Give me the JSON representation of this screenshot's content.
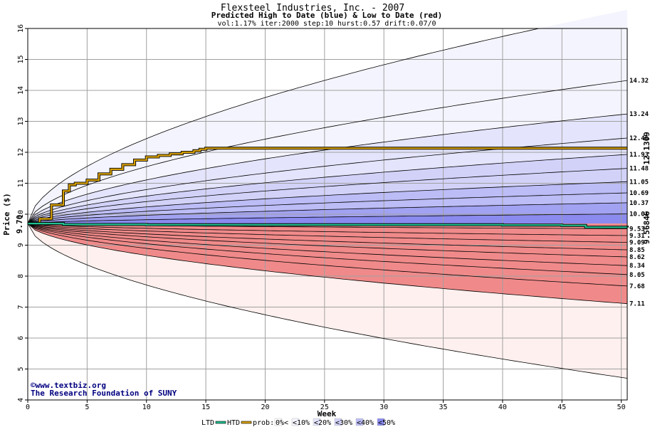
{
  "chart_data": {
    "type": "area",
    "title": "Flexsteel Industries, Inc. - 2007",
    "subtitle": "Predicted High to Date (blue) &  Low to Date (red)",
    "params": "vol:1.17% iter:2000 step:10 hurst:0.57 drift:0.07/0",
    "xlabel": "Week",
    "ylabel": "Price ($)",
    "xlim": [
      0,
      50.5
    ],
    "ylim": [
      4,
      16
    ],
    "x_ticks": [
      "0",
      "5",
      "10",
      "15",
      "20",
      "25",
      "30",
      "35",
      "40",
      "45",
      "50"
    ],
    "y_ticks": [
      "4",
      "5",
      "6",
      "7",
      "8",
      "9",
      "10",
      "11",
      "12",
      "13",
      "14",
      "15",
      "16"
    ],
    "grid": true,
    "start_price": 9.7,
    "start_label": "9.70",
    "hurst": 0.57,
    "colors": {
      "blue_band": [
        "#f4f4fe",
        "#e4e4fc",
        "#d2d2f9",
        "#bcbcf6",
        "#a2a2f2",
        "#8a8aef"
      ],
      "red_band": [
        "#fef0ee",
        "#fde0dc",
        "#fbcaca",
        "#f8b0b0",
        "#f49a9a",
        "#f08a8a"
      ],
      "htd_line": "#d8a000",
      "ltd_line": "#20c090",
      "quantile_line": "#000000",
      "grid": "#a0a0a0"
    },
    "high_quantiles": {
      "end_values": [
        14.32,
        13.24,
        12.46,
        11.93,
        11.48,
        11.05,
        10.69,
        10.37,
        10.01
      ],
      "end_labels": [
        "14.32",
        "13.24",
        "12.46",
        "11.93",
        "11.48",
        "11.05",
        "10.69",
        "10.37",
        "10.01"
      ],
      "outer_envelope_end": 16.6
    },
    "low_quantiles": {
      "end_values": [
        9.53,
        9.31,
        9.09,
        8.85,
        8.62,
        8.34,
        8.05,
        7.68,
        7.11
      ],
      "end_labels": [
        "9.53",
        "9.31",
        "9.09",
        "8.85",
        "8.62",
        "8.34",
        "8.05",
        "7.68",
        "7.11"
      ],
      "outer_envelope_end": 4.7
    },
    "series": [
      {
        "name": "HTD",
        "x": [
          0,
          1,
          2,
          3,
          3.5,
          4,
          5,
          6,
          7,
          8,
          9,
          10,
          11,
          12,
          13,
          14,
          14.5,
          15,
          20,
          30,
          40,
          50.5
        ],
        "y": [
          9.7,
          9.85,
          10.3,
          10.75,
          10.95,
          11.0,
          11.1,
          11.3,
          11.45,
          11.6,
          11.75,
          11.85,
          11.9,
          11.95,
          12.0,
          12.05,
          12.1,
          12.13,
          12.13,
          12.13,
          12.13,
          12.13
        ],
        "end_value": 12.1309,
        "end_label": "12.1309"
      },
      {
        "name": "LTD",
        "x": [
          0,
          3,
          10,
          20,
          30,
          40,
          45,
          47,
          50.5
        ],
        "y": [
          9.7,
          9.67,
          9.66,
          9.66,
          9.66,
          9.65,
          9.64,
          9.58,
          9.57
        ],
        "end_value": 9.56846,
        "end_label": "9.56846"
      }
    ]
  },
  "credit": {
    "copyright_symbol": "©",
    "site": "www.textbiz.org",
    "org": "The Research Foundation of SUNY"
  },
  "legend": {
    "ltd": "LTD",
    "htd": "HTD",
    "prob": "prob:",
    "items": [
      {
        "label": "0%<",
        "color": "#ffffff"
      },
      {
        "label": "<10%",
        "color": "#f4f4fe"
      },
      {
        "label": "<20%",
        "color": "#e4e4fc"
      },
      {
        "label": "<30%",
        "color": "#d2d2f9"
      },
      {
        "label": "<40%",
        "color": "#bcbcf6"
      },
      {
        "label": "<50%",
        "color": "#8a8aef"
      }
    ]
  }
}
